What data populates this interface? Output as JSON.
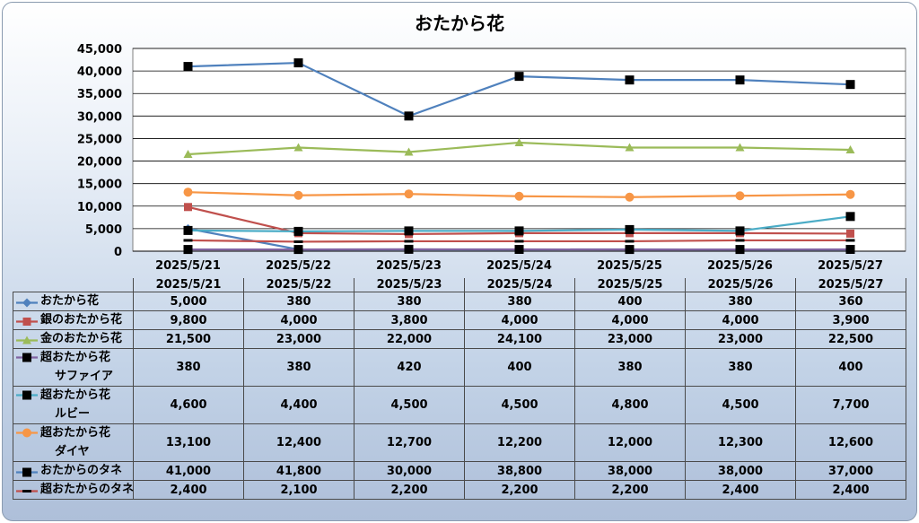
{
  "chart_data": {
    "type": "line",
    "title": "おたから花",
    "categories": [
      "2025/5/21",
      "2025/5/22",
      "2025/5/23",
      "2025/5/24",
      "2025/5/25",
      "2025/5/26",
      "2025/5/27"
    ],
    "ylim": [
      0,
      45000
    ],
    "yticks": [
      "0",
      "5,000",
      "10,000",
      "15,000",
      "20,000",
      "25,000",
      "30,000",
      "35,000",
      "40,000",
      "45,000"
    ],
    "grid": true,
    "legend": "data-table",
    "series": [
      {
        "name": "おたから花",
        "name_lines": [
          "おたから花"
        ],
        "color": "#4f81bd",
        "marker": "diamond",
        "values": [
          5000,
          380,
          380,
          380,
          400,
          380,
          360
        ],
        "labels": [
          "5,000",
          "380",
          "380",
          "380",
          "400",
          "380",
          "360"
        ]
      },
      {
        "name": "銀のおたから花",
        "name_lines": [
          "銀のおたから花"
        ],
        "color": "#c0504d",
        "marker": "square",
        "values": [
          9800,
          4000,
          3800,
          4000,
          4000,
          4000,
          3900
        ],
        "labels": [
          "9,800",
          "4,000",
          "3,800",
          "4,000",
          "4,000",
          "4,000",
          "3,900"
        ]
      },
      {
        "name": "金のおたから花",
        "name_lines": [
          "金のおたから花"
        ],
        "color": "#9bbb59",
        "marker": "triangle",
        "values": [
          21500,
          23000,
          22000,
          24100,
          23000,
          23000,
          22500
        ],
        "labels": [
          "21,500",
          "23,000",
          "22,000",
          "24,100",
          "23,000",
          "23,000",
          "22,500"
        ]
      },
      {
        "name": "超おたから花サファイア",
        "name_lines": [
          "超おたから花",
          "サファイア"
        ],
        "color": "#8064a2",
        "marker": "blacksquare",
        "values": [
          380,
          380,
          420,
          400,
          380,
          380,
          400
        ],
        "labels": [
          "380",
          "380",
          "420",
          "400",
          "380",
          "380",
          "400"
        ]
      },
      {
        "name": "超おたから花ルビー",
        "name_lines": [
          "超おたから花",
          "ルビー"
        ],
        "color": "#4bacc6",
        "marker": "blacksquare",
        "values": [
          4600,
          4400,
          4500,
          4500,
          4800,
          4500,
          7700
        ],
        "labels": [
          "4,600",
          "4,400",
          "4,500",
          "4,500",
          "4,800",
          "4,500",
          "7,700"
        ]
      },
      {
        "name": "超おたから花ダイヤ",
        "name_lines": [
          "超おたから花",
          "ダイヤ"
        ],
        "color": "#f79646",
        "marker": "circle",
        "values": [
          13100,
          12400,
          12700,
          12200,
          12000,
          12300,
          12600
        ],
        "labels": [
          "13,100",
          "12,400",
          "12,700",
          "12,200",
          "12,000",
          "12,300",
          "12,600"
        ]
      },
      {
        "name": "おたからのタネ",
        "name_lines": [
          "おたからのタネ"
        ],
        "color": "#4f81bd",
        "marker": "blacksquare",
        "values": [
          41000,
          41800,
          30000,
          38800,
          38000,
          38000,
          37000
        ],
        "labels": [
          "41,000",
          "41,800",
          "30,000",
          "38,800",
          "38,000",
          "38,000",
          "37,000"
        ]
      },
      {
        "name": "超おたからのタネ",
        "name_lines": [
          "超おたからのタネ"
        ],
        "color": "#c0504d",
        "marker": "dash",
        "values": [
          2400,
          2100,
          2200,
          2200,
          2200,
          2400,
          2400
        ],
        "labels": [
          "2,400",
          "2,100",
          "2,200",
          "2,200",
          "2,200",
          "2,400",
          "2,400"
        ]
      }
    ]
  }
}
